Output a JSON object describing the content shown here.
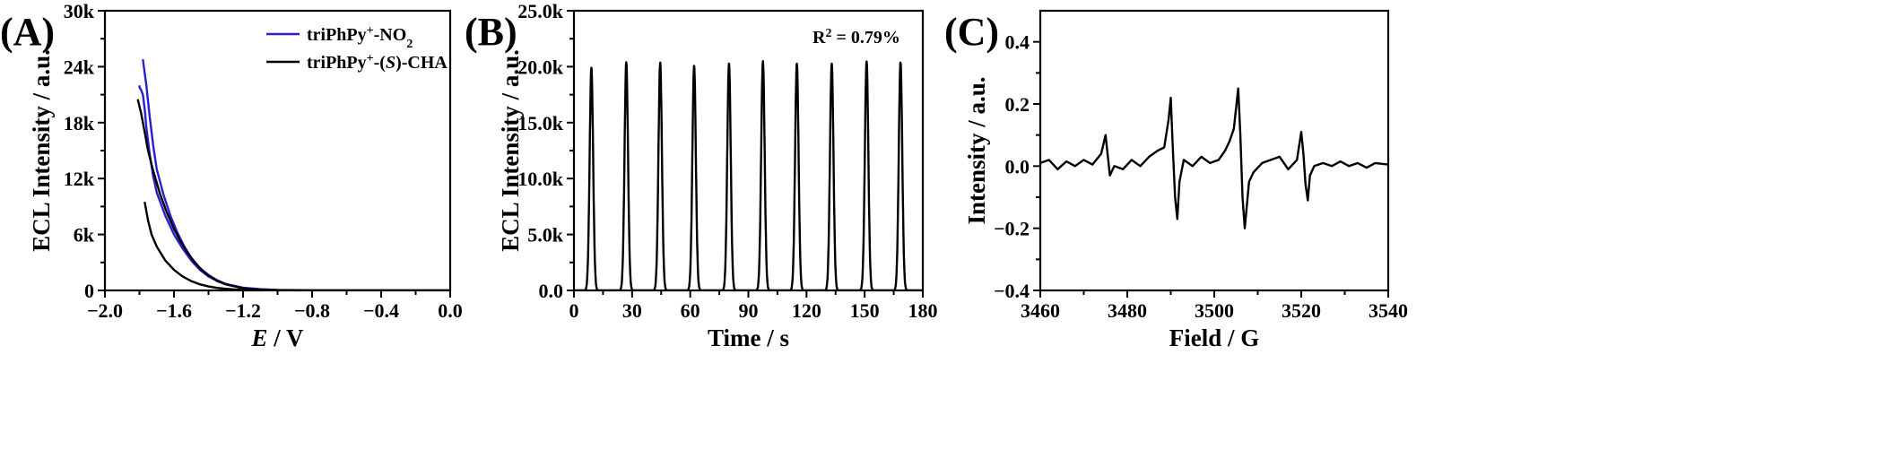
{
  "chart_data": [
    {
      "type": "line",
      "panel": "(A)",
      "xlabel": "E / V",
      "xlabel_italic_part": "E",
      "xlabel_rest": " / V",
      "ylabel": "ECL Intensity / a.u.",
      "xlim": [
        -2.0,
        0.0
      ],
      "ylim": [
        0,
        30000
      ],
      "xticks": [
        "−2.0",
        "−1.6",
        "−1.2",
        "−0.8",
        "−0.4",
        "0.0"
      ],
      "xtick_values": [
        -2.0,
        -1.6,
        -1.2,
        -0.8,
        -0.4,
        0.0
      ],
      "yticks": [
        "0",
        "6k",
        "12k",
        "18k",
        "24k",
        "30k"
      ],
      "ytick_values": [
        0,
        6000,
        12000,
        18000,
        24000,
        30000
      ],
      "legend": "top-right",
      "series": [
        {
          "name": "triPhPy+-NO2",
          "color": "#2a1fcf",
          "x": [
            -1.78,
            -1.76,
            -1.74,
            -1.72,
            -1.7,
            -1.66,
            -1.62,
            -1.58,
            -1.54,
            -1.5,
            -1.45,
            -1.4,
            -1.35,
            -1.3,
            -1.2,
            -1.1,
            -1.0,
            -0.9,
            -0.8,
            -0.6,
            -0.4,
            -0.2,
            0.0,
            -0.2,
            -0.4,
            -0.6,
            -0.8,
            -1.0,
            -1.1,
            -1.2,
            -1.3,
            -1.35,
            -1.4,
            -1.45,
            -1.5,
            -1.55,
            -1.6,
            -1.65,
            -1.7,
            -1.72,
            -1.74,
            -1.76,
            -1.77,
            -1.78,
            -1.79,
            -1.8,
            -1.8
          ],
          "y": [
            24800,
            22000,
            18500,
            15500,
            13000,
            10200,
            8000,
            6200,
            4700,
            3500,
            2400,
            1650,
            1100,
            700,
            300,
            130,
            60,
            30,
            15,
            5,
            2,
            0,
            0,
            0,
            2,
            5,
            15,
            50,
            110,
            280,
            650,
            1000,
            1500,
            2200,
            3200,
            4500,
            6000,
            8000,
            10500,
            12200,
            14500,
            17500,
            19500,
            21000,
            21500,
            21800,
            22000
          ]
        },
        {
          "name": "triPhPy+-(S)-CHA",
          "color": "#000000",
          "x": [
            -1.81,
            -1.79,
            -1.77,
            -1.75,
            -1.72,
            -1.68,
            -1.64,
            -1.6,
            -1.56,
            -1.52,
            -1.48,
            -1.44,
            -1.4,
            -1.35,
            -1.3,
            -1.2,
            -1.1,
            -1.0,
            -0.8,
            -0.6,
            -0.4,
            -0.2,
            0.0,
            -0.4,
            -0.8,
            -1.0,
            -1.1,
            -1.2,
            -1.25,
            -1.3,
            -1.35,
            -1.4,
            -1.45,
            -1.5,
            -1.55,
            -1.6,
            -1.65,
            -1.7,
            -1.73,
            -1.75,
            -1.77
          ],
          "y": [
            20500,
            19000,
            17000,
            15000,
            12800,
            10300,
            8300,
            6600,
            5200,
            4000,
            3000,
            2200,
            1600,
            1050,
            650,
            220,
            80,
            30,
            8,
            3,
            1,
            0,
            0,
            1,
            5,
            10,
            20,
            50,
            100,
            170,
            270,
            420,
            650,
            1000,
            1500,
            2200,
            3200,
            4700,
            6000,
            7500,
            9500
          ]
        }
      ],
      "legend_entries": [
        {
          "pre": "triPhPy",
          "sup": "+",
          "mid": "-NO",
          "sub": "2",
          "italic": "",
          "post": ""
        },
        {
          "pre": "triPhPy",
          "sup": "+",
          "mid": "-(",
          "sub": "",
          "italic": "S",
          "post": ")-CHA"
        }
      ]
    },
    {
      "type": "line",
      "panel": "(B)",
      "xlabel": "Time / s",
      "ylabel": "ECL Intensity / a.u.",
      "xlim": [
        0,
        180
      ],
      "ylim": [
        0,
        25000
      ],
      "xticks": [
        "0",
        "30",
        "60",
        "90",
        "120",
        "150",
        "180"
      ],
      "xtick_values": [
        0,
        30,
        60,
        90,
        120,
        150,
        180
      ],
      "yticks": [
        "0.0",
        "5.0k",
        "10.0k",
        "15.0k",
        "20.0k",
        "25.0k"
      ],
      "ytick_values": [
        0,
        5000,
        10000,
        15000,
        20000,
        25000
      ],
      "annotation": {
        "pre": "R",
        "sup": "2",
        "post": " = 0.79%"
      },
      "series": [
        {
          "name": "",
          "color": "#000000",
          "peak_times": [
            9,
            27,
            44.5,
            62,
            80,
            97.5,
            115,
            133,
            151,
            168.5
          ],
          "peak_values": [
            19900,
            20400,
            20400,
            20100,
            20300,
            20500,
            20300,
            20300,
            20500,
            20400
          ],
          "baseline": 0
        }
      ]
    },
    {
      "type": "line",
      "panel": "(C)",
      "xlabel": "Field / G",
      "ylabel": "Intensity / a.u.",
      "xlim": [
        3460,
        3540
      ],
      "ylim": [
        -0.4,
        0.5
      ],
      "xticks": [
        "3460",
        "3480",
        "3500",
        "3520",
        "3540"
      ],
      "xtick_values": [
        3460,
        3480,
        3500,
        3520,
        3540
      ],
      "yticks": [
        "−0.4",
        "−0.2",
        "0.0",
        "0.2",
        "0.4"
      ],
      "ytick_values": [
        -0.4,
        -0.2,
        0.0,
        0.2,
        0.4
      ],
      "series": [
        {
          "name": "",
          "color": "#000000",
          "x": [
            3460,
            3462,
            3464,
            3466,
            3468,
            3470,
            3472,
            3474,
            3475,
            3476,
            3477,
            3479,
            3481,
            3483,
            3485,
            3487,
            3488.5,
            3489.5,
            3490,
            3490.5,
            3491,
            3491.5,
            3492,
            3493,
            3495,
            3497,
            3499,
            3501,
            3502.5,
            3503.5,
            3504.5,
            3505.5,
            3506,
            3506.5,
            3507,
            3508,
            3509,
            3511,
            3513,
            3515,
            3517,
            3519,
            3520,
            3520.5,
            3521,
            3521.5,
            3522,
            3523,
            3525,
            3527,
            3529,
            3531,
            3533,
            3535,
            3537,
            3540
          ],
          "y": [
            0.01,
            0.02,
            -0.01,
            0.015,
            0.0,
            0.02,
            0.005,
            0.04,
            0.1,
            -0.03,
            0.0,
            -0.01,
            0.02,
            0.0,
            0.03,
            0.05,
            0.06,
            0.15,
            0.22,
            0.05,
            -0.1,
            -0.17,
            -0.05,
            0.02,
            0.0,
            0.03,
            0.01,
            0.02,
            0.05,
            0.08,
            0.12,
            0.25,
            0.1,
            -0.1,
            -0.2,
            -0.05,
            -0.02,
            0.01,
            0.02,
            0.03,
            -0.01,
            0.02,
            0.11,
            0.04,
            -0.06,
            -0.11,
            -0.03,
            0.0,
            0.01,
            0.0,
            0.015,
            0.0,
            0.01,
            -0.005,
            0.01,
            0.005
          ]
        }
      ]
    }
  ]
}
